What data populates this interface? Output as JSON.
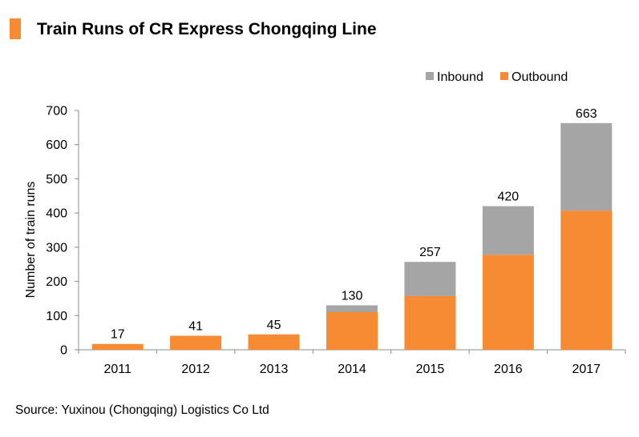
{
  "header": {
    "title": "Train Runs of CR Express Chongqing Line",
    "marker_color": "#F68B33"
  },
  "source": "Source: Yuxinou  (Chongqing) Logistics Co Ltd",
  "chart_data": {
    "type": "bar",
    "stacked": true,
    "title": "Train Runs of CR Express Chongqing Line",
    "xlabel": "",
    "ylabel": "Number of train runs",
    "ylim": [
      0,
      700
    ],
    "yticks": [
      0,
      100,
      200,
      300,
      400,
      500,
      600,
      700
    ],
    "grid": false,
    "legend_position": "top-right",
    "categories": [
      "2011",
      "2012",
      "2013",
      "2014",
      "2015",
      "2016",
      "2017"
    ],
    "series": [
      {
        "name": "Outbound",
        "color": "#F68B33",
        "values": [
          17,
          41,
          45,
          110,
          157,
          278,
          407
        ]
      },
      {
        "name": "Inbound",
        "color": "#A5A5A5",
        "values": [
          0,
          0,
          0,
          20,
          100,
          142,
          256
        ]
      }
    ],
    "totals": [
      17,
      41,
      45,
      130,
      257,
      420,
      663
    ],
    "legend_order": [
      "Inbound",
      "Outbound"
    ]
  }
}
